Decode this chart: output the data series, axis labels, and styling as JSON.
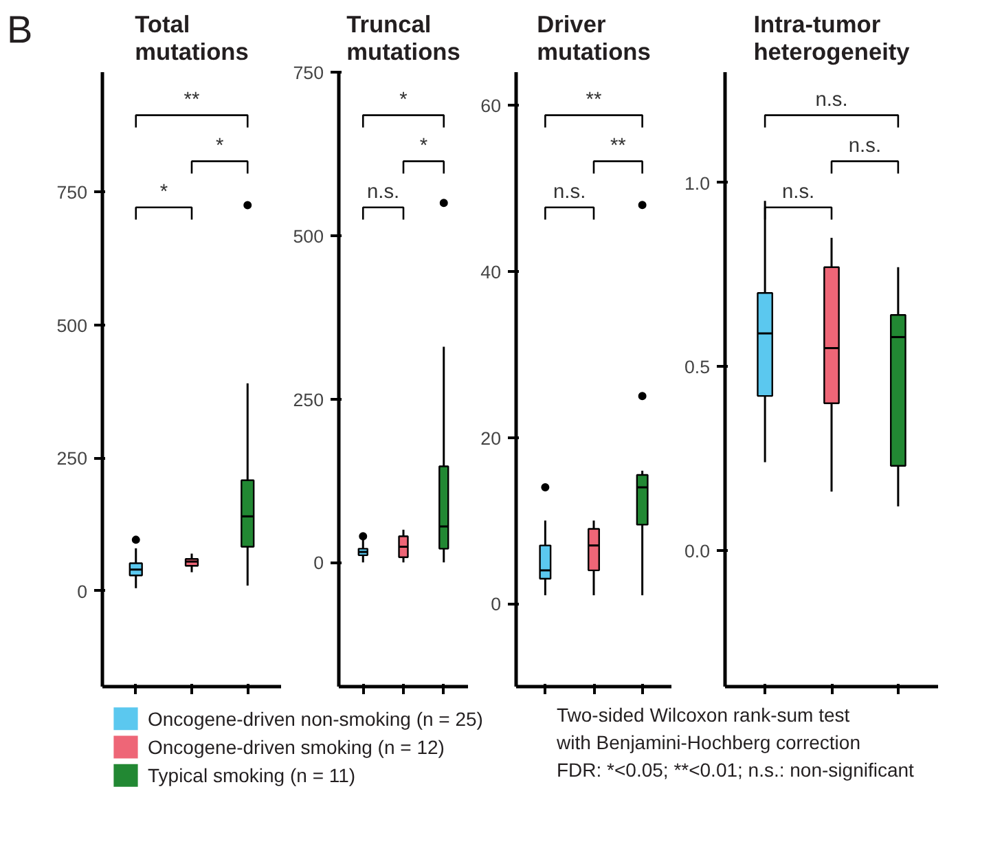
{
  "chart_data": [
    {
      "type": "box",
      "title": "Total mutations",
      "categories": [
        null,
        null,
        null
      ],
      "ylim": [
        -180,
        975
      ],
      "yticks": [
        0,
        250,
        500,
        750
      ],
      "tick_labels": "y",
      "grid": false,
      "legend": "bottom",
      "series": [
        {
          "name": "Oncogene-driven non-smoking (n = 25)",
          "color": "#5bc8ef",
          "boxes": [
            {
              "low": 5,
              "q1": 29,
              "median": 40,
              "q3": 52,
              "high": 80,
              "outliers": [
                96
              ]
            },
            null,
            null
          ]
        },
        {
          "name": "Oncogene-driven smoking (n = 12)",
          "color": "#ee6677",
          "boxes": [
            null,
            {
              "low": 35,
              "q1": 47,
              "median": 55,
              "q3": 60,
              "high": 70
            },
            null
          ]
        },
        {
          "name": "Typical smoking (n = 11)",
          "color": "#228833",
          "boxes": [
            null,
            null,
            {
              "low": 10,
              "q1": 83,
              "median": 140,
              "q3": 208,
              "high": 390,
              "outliers": [
                725
              ]
            }
          ]
        }
      ],
      "annotations": [
        "**",
        "*",
        "*"
      ]
    },
    {
      "type": "box",
      "title": "Truncal mutations",
      "categories": [
        null,
        null,
        null
      ],
      "ylim": [
        -190,
        750
      ],
      "yticks": [
        0,
        250,
        500,
        750
      ],
      "tick_labels": "y",
      "grid": false,
      "series": [
        {
          "color": "#5bc8ef",
          "boxes": [
            {
              "low": 0,
              "q1": 11,
              "median": 16,
              "q3": 21,
              "high": 35,
              "outliers": [
                40
              ]
            },
            null,
            null
          ]
        },
        {
          "color": "#ee6677",
          "boxes": [
            null,
            {
              "low": 0,
              "q1": 8,
              "median": 24,
              "q3": 40,
              "high": 50
            },
            null
          ]
        },
        {
          "color": "#228833",
          "boxes": [
            null,
            null,
            {
              "low": 0,
              "q1": 21,
              "median": 55,
              "q3": 147,
              "high": 330,
              "outliers": [
                550
              ]
            }
          ]
        }
      ],
      "annotations": [
        "*",
        "*",
        "n.s."
      ]
    },
    {
      "type": "box",
      "title": "Driver mutations",
      "categories": [
        null,
        null,
        null
      ],
      "ylim": [
        -10,
        64
      ],
      "yticks": [
        0,
        20,
        40,
        60
      ],
      "tick_labels": "y",
      "grid": false,
      "series": [
        {
          "color": "#5bc8ef",
          "boxes": [
            {
              "low": 1,
              "q1": 3,
              "median": 4,
              "q3": 7,
              "high": 10,
              "outliers": [
                14
              ]
            },
            null,
            null
          ]
        },
        {
          "color": "#ee6677",
          "boxes": [
            null,
            {
              "low": 1,
              "q1": 4,
              "median": 7,
              "q3": 9,
              "high": 10
            },
            null
          ]
        },
        {
          "color": "#228833",
          "boxes": [
            null,
            null,
            {
              "low": 1,
              "q1": 9.5,
              "median": 14,
              "q3": 15.5,
              "high": 16,
              "outliers": [
                25,
                48
              ]
            }
          ]
        }
      ],
      "annotations": [
        "**",
        "**",
        "n.s."
      ]
    },
    {
      "type": "box",
      "title": "Intra-tumor heterogeneity",
      "categories": [
        null,
        null,
        null
      ],
      "ylim": [
        -0.37,
        1.3
      ],
      "yticks": [
        {
          "value": 0,
          "label": "0.0"
        },
        0.5,
        {
          "value": 1,
          "label": "1.0"
        }
      ],
      "tick_labels": "y",
      "grid": false,
      "series": [
        {
          "color": "#5bc8ef",
          "boxes": [
            {
              "low": 0.24,
              "q1": 0.42,
              "median": 0.59,
              "q3": 0.7,
              "high": 0.95
            },
            null,
            null
          ]
        },
        {
          "color": "#ee6677",
          "boxes": [
            null,
            {
              "low": 0.16,
              "q1": 0.4,
              "median": 0.55,
              "q3": 0.77,
              "high": 0.85
            },
            null
          ]
        },
        {
          "color": "#228833",
          "boxes": [
            null,
            null,
            {
              "low": 0.12,
              "q1": 0.23,
              "median": 0.58,
              "q3": 0.64,
              "high": 0.77
            }
          ]
        }
      ],
      "annotations": [
        "n.s.",
        "n.s.",
        "n.s."
      ]
    },
    {
      "type": "other",
      "title": "B",
      "annotations": [
        "Two-sided Wilcoxon rank-sum test",
        "with Benjamini-Hochberg correction",
        "FDR: *<0.05; **<0.01; n.s.: non-significant"
      ]
    }
  ]
}
